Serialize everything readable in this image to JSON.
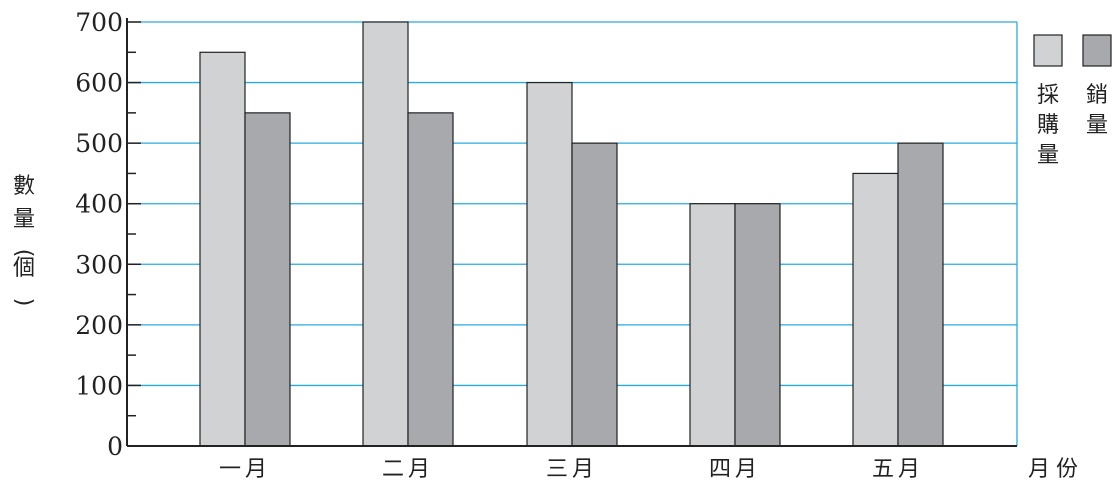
{
  "chart_data": {
    "type": "bar",
    "title": "",
    "xlabel": "月份",
    "ylabel": "數量(個)",
    "categories": [
      "一月",
      "二月",
      "三月",
      "四月",
      "五月"
    ],
    "series": [
      {
        "name": "採購量",
        "values": [
          650,
          700,
          600,
          400,
          450
        ],
        "color": "#d0d2d4"
      },
      {
        "name": "銷量",
        "values": [
          550,
          550,
          500,
          400,
          500
        ],
        "color": "#a7a9ac"
      }
    ],
    "ylim": [
      0,
      700
    ],
    "yticks": [
      0,
      100,
      200,
      300,
      400,
      500,
      600,
      700
    ],
    "grid": true,
    "grid_color": "#29abe2",
    "legend_position": "top-right"
  }
}
